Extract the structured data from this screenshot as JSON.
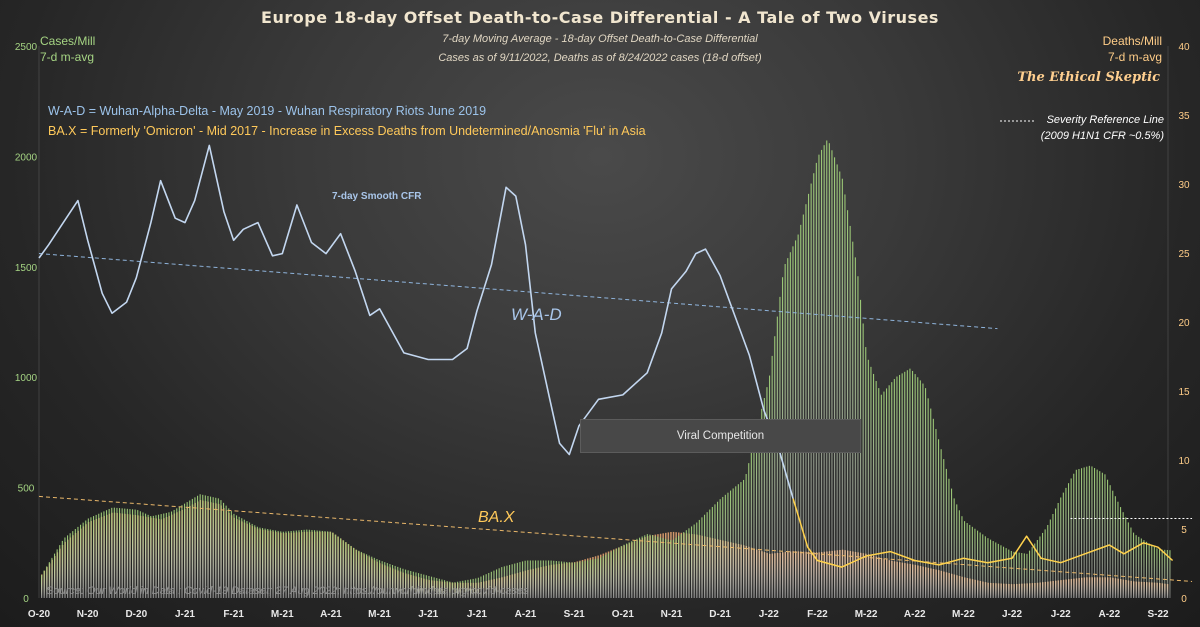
{
  "header": {
    "title": "Europe  18-day  Offset  Death-to-Case  Differential  - A  Tale  of  Two  Viruses",
    "subtitle1": "7-day Moving Average - 18-day Offset Death-to-Case Differential",
    "subtitle2": "Cases as of 9/11/2022,  Deaths as of 8/24/2022  cases (18-d offset)",
    "brand": "The Ethical Skeptic"
  },
  "axes_labels": {
    "left_line1": "Cases/Mill",
    "left_line2": "7-d m-avg",
    "right_line1": "Deaths/Mill",
    "right_line2": "7-d m-avg"
  },
  "legend": {
    "wad": "W-A-D  =  Wuhan-Alpha-Delta - May 2019 - Wuhan Respiratory Riots June 2019",
    "bax": "BA.X  = Formerly  'Omicron' - Mid 2017 - Increase in Excess Deaths from Undetermined/Anosmia  'Flu' in Asia",
    "severity1": "Severity Reference Line",
    "severity2": "(2009 H1N1 CFR ~0.5%)"
  },
  "annotations": {
    "smooth_cfr": "7-day Smooth CFR",
    "wad_label": "W-A-D",
    "bax_label": "BA.X",
    "viral_competition": "Viral Competition"
  },
  "source": "Source: Our World in Data : Covid-19 Dataset; 27 Aug 2022; https://ourworldindata.org/covid-cases",
  "colors": {
    "cases": "#9fcf77",
    "deaths": "#e7a26d",
    "cfr": "#c3d7f0",
    "omicron_cfr": "#ffd24d",
    "wad_text": "#9cc3ea",
    "bax_text": "#ffc95a",
    "left_axis": "#a5d483",
    "right_axis": "#ffcd88"
  },
  "chart_data": {
    "type": "bar",
    "x_ticks": [
      "O-20",
      "N-20",
      "D-20",
      "J-21",
      "F-21",
      "M-21",
      "A-21",
      "M-21",
      "J-21",
      "J-21",
      "A-21",
      "S-21",
      "O-21",
      "N-21",
      "D-21",
      "J-22",
      "F-22",
      "M-22",
      "A-22",
      "M-22",
      "J-22",
      "J-22",
      "A-22",
      "S-22"
    ],
    "y_left": {
      "label": "Cases/Mill 7-d m-avg",
      "min": 0,
      "max": 2500,
      "ticks": [
        0,
        500,
        1000,
        1500,
        2000,
        2500
      ]
    },
    "y_right": {
      "label": "Deaths/Mill 7-d m-avg",
      "min": 0,
      "max": 40,
      "ticks": [
        0,
        5,
        10,
        15,
        20,
        25,
        30,
        35,
        40
      ]
    },
    "series": [
      {
        "name": "Cases/Mill",
        "axis": "left",
        "style": "bars",
        "points": [
          [
            0,
            90
          ],
          [
            0.5,
            270
          ],
          [
            1,
            360
          ],
          [
            1.5,
            410
          ],
          [
            2,
            400
          ],
          [
            2.3,
            370
          ],
          [
            2.7,
            390
          ],
          [
            3,
            430
          ],
          [
            3.3,
            470
          ],
          [
            3.7,
            450
          ],
          [
            4,
            380
          ],
          [
            4.5,
            320
          ],
          [
            5,
            300
          ],
          [
            5.5,
            310
          ],
          [
            6,
            300
          ],
          [
            6.5,
            220
          ],
          [
            7,
            170
          ],
          [
            7.5,
            130
          ],
          [
            8,
            100
          ],
          [
            8.5,
            70
          ],
          [
            9,
            90
          ],
          [
            9.5,
            140
          ],
          [
            10,
            170
          ],
          [
            10.5,
            170
          ],
          [
            11,
            160
          ],
          [
            11.5,
            180
          ],
          [
            12,
            240
          ],
          [
            12.5,
            290
          ],
          [
            13,
            260
          ],
          [
            13.5,
            340
          ],
          [
            14,
            450
          ],
          [
            14.5,
            540
          ],
          [
            15,
            1000
          ],
          [
            15.3,
            1500
          ],
          [
            15.6,
            1650
          ],
          [
            16,
            2000
          ],
          [
            16.2,
            2080
          ],
          [
            16.5,
            1900
          ],
          [
            16.8,
            1500
          ],
          [
            17,
            1100
          ],
          [
            17.3,
            920
          ],
          [
            17.6,
            1000
          ],
          [
            17.9,
            1040
          ],
          [
            18.2,
            960
          ],
          [
            18.5,
            700
          ],
          [
            18.8,
            450
          ],
          [
            19,
            350
          ],
          [
            19.5,
            270
          ],
          [
            20,
            210
          ],
          [
            20.3,
            200
          ],
          [
            20.7,
            320
          ],
          [
            21,
            460
          ],
          [
            21.3,
            580
          ],
          [
            21.6,
            600
          ],
          [
            21.9,
            560
          ],
          [
            22.2,
            420
          ],
          [
            22.5,
            290
          ],
          [
            23,
            220
          ],
          [
            23.7,
            210
          ]
        ]
      },
      {
        "name": "Deaths/Mill",
        "axis": "right",
        "style": "bars",
        "points": [
          [
            0,
            1.5
          ],
          [
            0.5,
            4
          ],
          [
            1,
            5.5
          ],
          [
            1.5,
            6.2
          ],
          [
            2,
            6
          ],
          [
            2.5,
            5.7
          ],
          [
            3,
            6.5
          ],
          [
            3.3,
            7.1
          ],
          [
            3.7,
            6.8
          ],
          [
            4,
            5.8
          ],
          [
            4.5,
            5
          ],
          [
            5,
            4.7
          ],
          [
            5.5,
            4.8
          ],
          [
            6,
            4.8
          ],
          [
            6.5,
            3.5
          ],
          [
            7,
            2.5
          ],
          [
            7.5,
            1.8
          ],
          [
            8,
            1.3
          ],
          [
            8.5,
            1.1
          ],
          [
            9,
            1.1
          ],
          [
            9.5,
            1.5
          ],
          [
            10,
            2
          ],
          [
            10.5,
            2.4
          ],
          [
            11,
            2.6
          ],
          [
            11.5,
            3.1
          ],
          [
            12,
            3.8
          ],
          [
            12.5,
            4.5
          ],
          [
            13,
            4.8
          ],
          [
            13.5,
            4.6
          ],
          [
            14,
            4.2
          ],
          [
            14.5,
            3.8
          ],
          [
            15,
            3.2
          ],
          [
            15.5,
            3.4
          ],
          [
            16,
            3.3
          ],
          [
            16.5,
            3.5
          ],
          [
            17,
            3.2
          ],
          [
            17.5,
            2.7
          ],
          [
            18,
            2.4
          ],
          [
            18.5,
            2
          ],
          [
            19,
            1.5
          ],
          [
            19.5,
            1.1
          ],
          [
            20,
            1
          ],
          [
            20.5,
            1.1
          ],
          [
            21,
            1.3
          ],
          [
            21.5,
            1.5
          ],
          [
            22,
            1.5
          ],
          [
            22.5,
            1.2
          ],
          [
            23,
            1.1
          ],
          [
            23.2,
            1
          ]
        ]
      },
      {
        "name": "7-day Smooth CFR",
        "axis": "left",
        "style": "line",
        "points": [
          [
            0,
            1540
          ],
          [
            0.2,
            1600
          ],
          [
            0.5,
            1700
          ],
          [
            0.8,
            1800
          ],
          [
            1,
            1620
          ],
          [
            1.3,
            1380
          ],
          [
            1.5,
            1290
          ],
          [
            1.8,
            1340
          ],
          [
            2,
            1450
          ],
          [
            2.3,
            1700
          ],
          [
            2.5,
            1890
          ],
          [
            2.8,
            1720
          ],
          [
            3,
            1700
          ],
          [
            3.2,
            1800
          ],
          [
            3.5,
            2050
          ],
          [
            3.8,
            1750
          ],
          [
            4,
            1620
          ],
          [
            4.2,
            1670
          ],
          [
            4.5,
            1700
          ],
          [
            4.8,
            1550
          ],
          [
            5,
            1560
          ],
          [
            5.3,
            1780
          ],
          [
            5.6,
            1610
          ],
          [
            5.9,
            1560
          ],
          [
            6.2,
            1650
          ],
          [
            6.5,
            1480
          ],
          [
            6.8,
            1280
          ],
          [
            7,
            1310
          ],
          [
            7.2,
            1230
          ],
          [
            7.5,
            1110
          ],
          [
            8,
            1080
          ],
          [
            8.5,
            1080
          ],
          [
            8.8,
            1130
          ],
          [
            9,
            1300
          ],
          [
            9.3,
            1510
          ],
          [
            9.6,
            1860
          ],
          [
            9.8,
            1820
          ],
          [
            10,
            1600
          ],
          [
            10.2,
            1200
          ],
          [
            10.5,
            900
          ],
          [
            10.7,
            700
          ],
          [
            10.9,
            650
          ],
          [
            11.1,
            780
          ],
          [
            11.5,
            900
          ],
          [
            12,
            920
          ],
          [
            12.5,
            1020
          ],
          [
            12.8,
            1200
          ],
          [
            13,
            1400
          ],
          [
            13.3,
            1480
          ],
          [
            13.5,
            1560
          ],
          [
            13.7,
            1580
          ],
          [
            14,
            1460
          ],
          [
            14.3,
            1280
          ],
          [
            14.6,
            1100
          ],
          [
            14.9,
            850
          ],
          [
            15.2,
            680
          ],
          [
            15.5,
            450
          ],
          [
            15.8,
            230
          ],
          [
            16,
            170
          ],
          [
            16.5,
            140
          ],
          [
            17,
            190
          ],
          [
            17.5,
            210
          ],
          [
            18,
            170
          ],
          [
            18.5,
            150
          ],
          [
            19,
            180
          ],
          [
            19.5,
            160
          ],
          [
            20,
            180
          ],
          [
            20.3,
            280
          ],
          [
            20.6,
            180
          ],
          [
            21,
            160
          ],
          [
            21.5,
            200
          ],
          [
            22,
            240
          ],
          [
            22.3,
            200
          ],
          [
            22.7,
            250
          ],
          [
            23,
            230
          ],
          [
            23.3,
            170
          ]
        ]
      },
      {
        "name": "Severity Reference Line",
        "axis": "left",
        "style": "dashed",
        "points": [
          [
            21.2,
            360
          ],
          [
            23.7,
            360
          ]
        ]
      }
    ],
    "trendlines": [
      {
        "name": "W-A-D",
        "axis": "left",
        "points": [
          [
            0,
            1560
          ],
          [
            19.7,
            1220
          ]
        ]
      },
      {
        "name": "BA.X",
        "axis": "left",
        "points": [
          [
            0,
            460
          ],
          [
            23.7,
            75
          ]
        ]
      }
    ]
  }
}
